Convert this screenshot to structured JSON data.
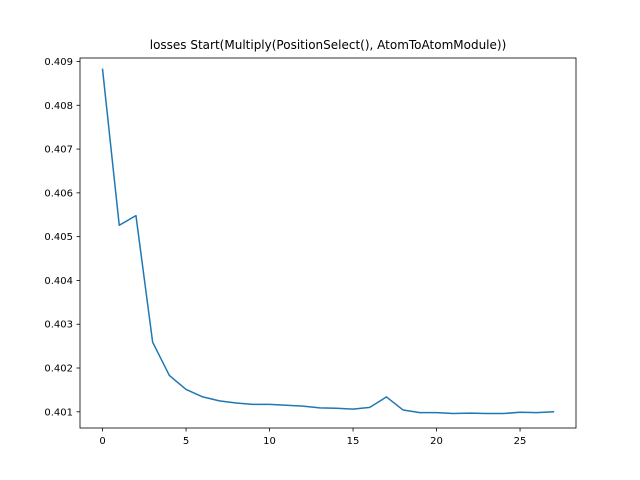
{
  "chart_data": {
    "type": "line",
    "title": "losses Start(Multiply(PositionSelect(), AtomToAtomModule))",
    "xlabel": "",
    "ylabel": "",
    "xlim": [
      -1.35,
      28.35
    ],
    "ylim": [
      0.40063,
      0.40908
    ],
    "x_ticks": [
      0,
      5,
      10,
      15,
      20,
      25
    ],
    "y_ticks": [
      0.401,
      0.402,
      0.403,
      0.404,
      0.405,
      0.406,
      0.407,
      0.408,
      0.409
    ],
    "x_tick_labels": [
      "0",
      "5",
      "10",
      "15",
      "20",
      "25"
    ],
    "y_tick_labels": [
      "0.401",
      "0.402",
      "0.403",
      "0.404",
      "0.405",
      "0.406",
      "0.407",
      "0.408",
      "0.409"
    ],
    "grid": false,
    "series": [
      {
        "color": "#1f77b4",
        "x": [
          0,
          1,
          2,
          3,
          4,
          5,
          6,
          7,
          8,
          9,
          10,
          11,
          12,
          13,
          14,
          15,
          16,
          17,
          18,
          19,
          20,
          21,
          22,
          23,
          24,
          25,
          26,
          27
        ],
        "y": [
          0.40882,
          0.40526,
          0.40548,
          0.40259,
          0.40183,
          0.40151,
          0.40134,
          0.40125,
          0.4012,
          0.40117,
          0.40117,
          0.40115,
          0.40113,
          0.40109,
          0.40108,
          0.40106,
          0.4011,
          0.40134,
          0.40104,
          0.40098,
          0.40098,
          0.40096,
          0.40097,
          0.40096,
          0.40096,
          0.40099,
          0.40098,
          0.401
        ]
      }
    ]
  }
}
